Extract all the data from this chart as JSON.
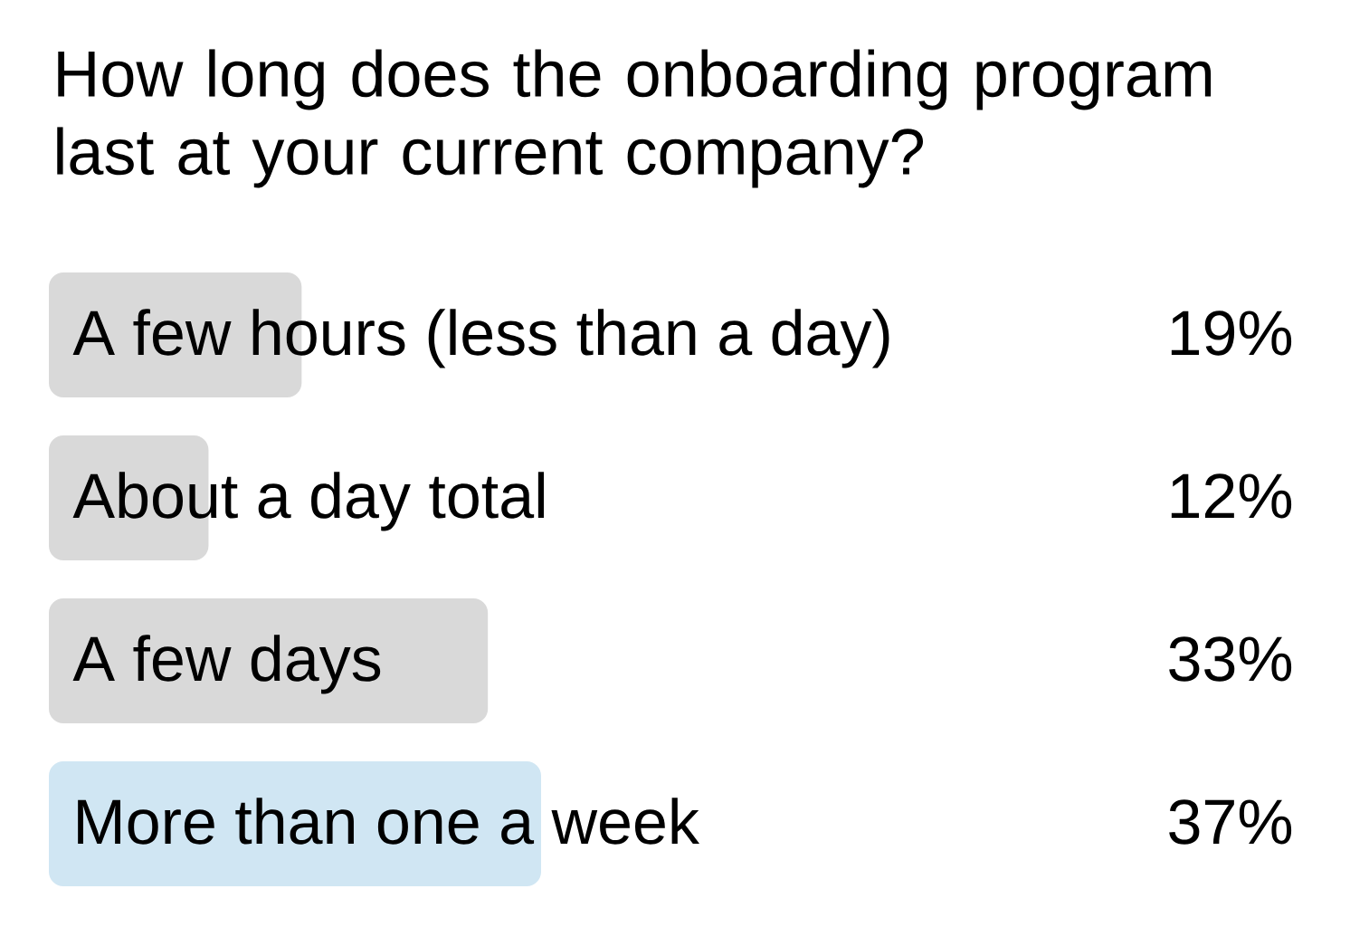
{
  "chart_data": {
    "type": "bar",
    "orientation": "horizontal",
    "title": "How long does the onboarding program last at your current company?",
    "categories": [
      "A few hours (less than a day)",
      "About a day total",
      "A few days",
      "More than one a week"
    ],
    "values": [
      19,
      12,
      33,
      37
    ],
    "colors": [
      "#d9d9d9",
      "#d9d9d9",
      "#d9d9d9",
      "#d0e6f3"
    ],
    "value_labels": [
      "19%",
      "12%",
      "33%",
      "37%"
    ]
  }
}
